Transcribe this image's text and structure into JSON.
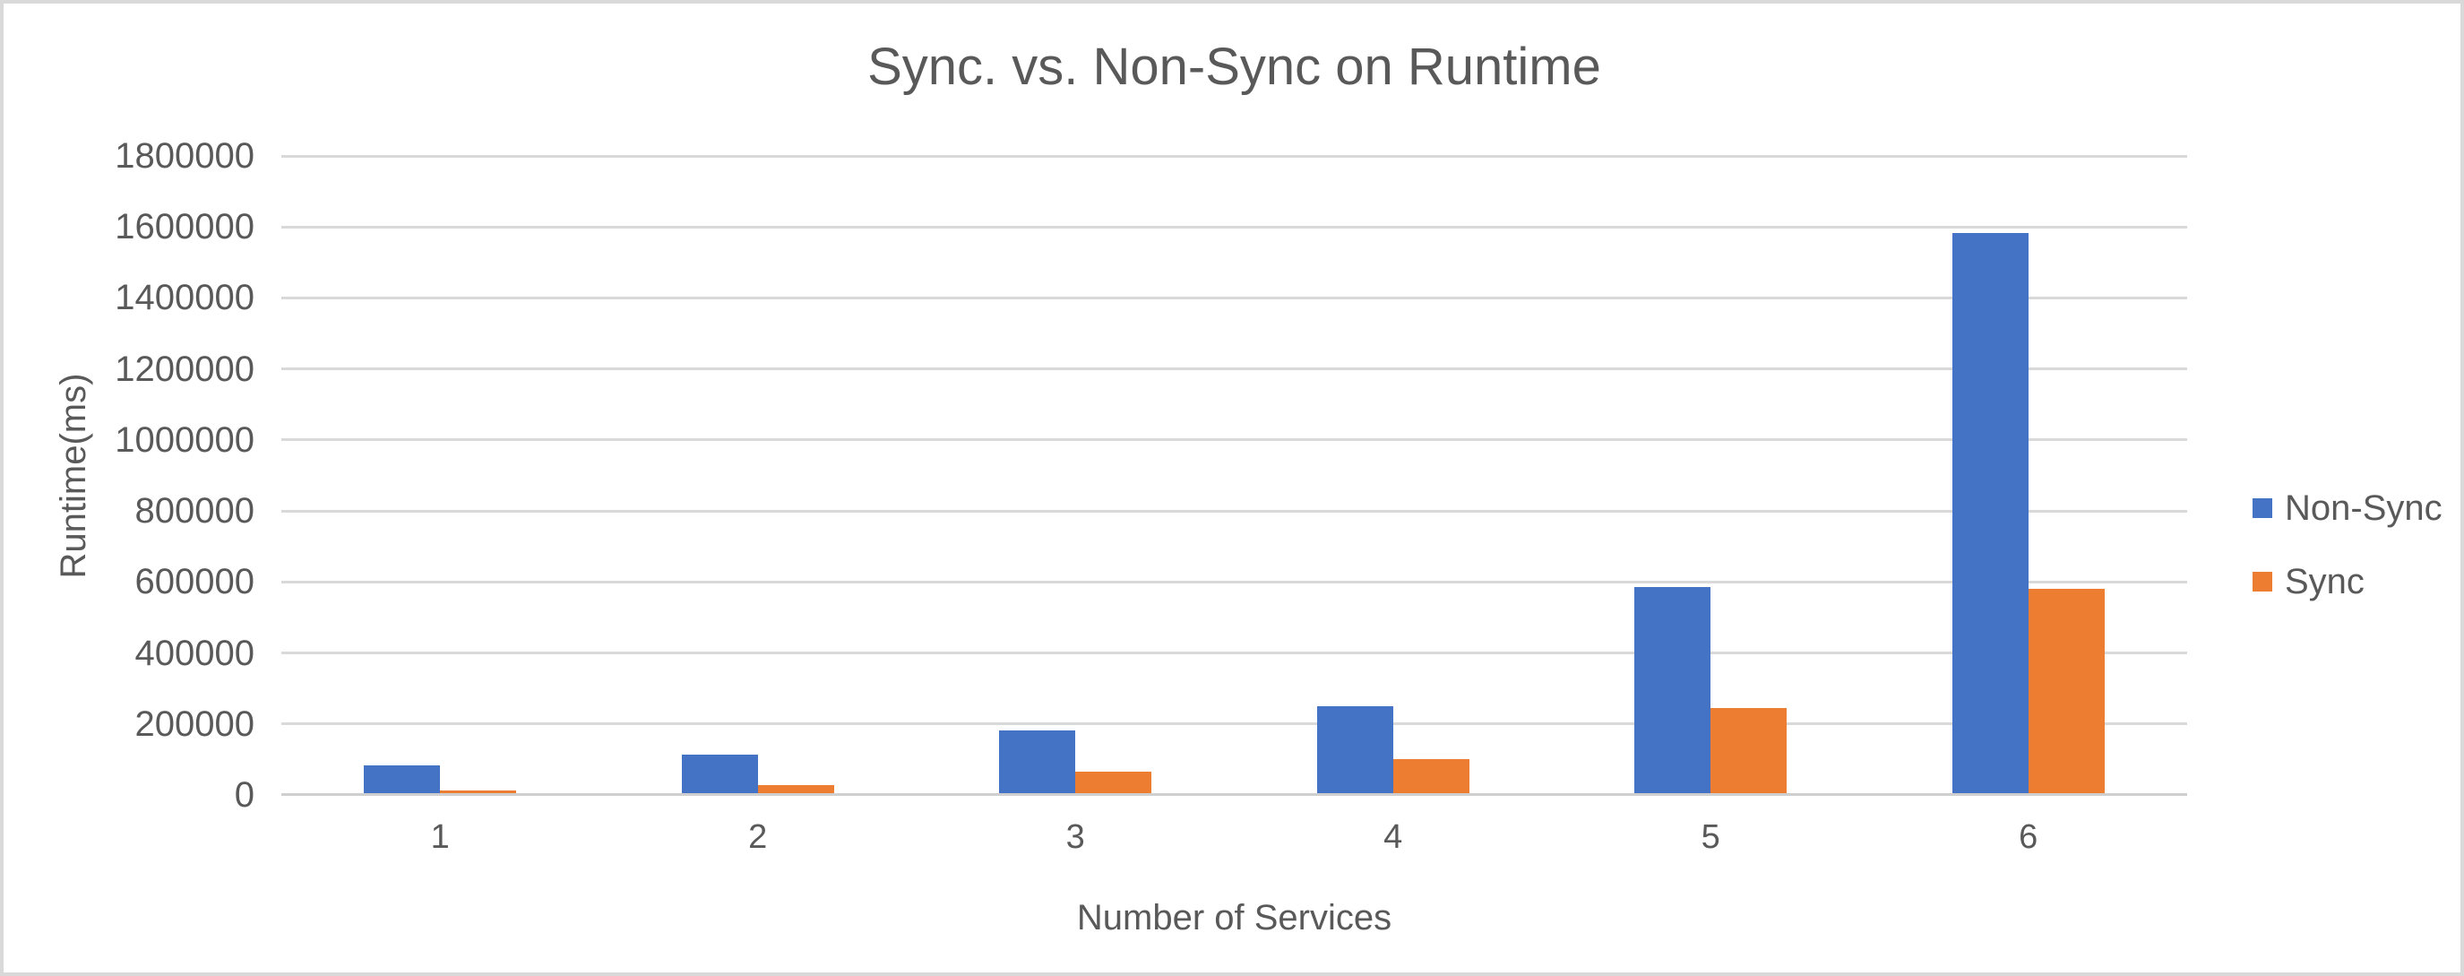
{
  "frame": {
    "background": "#ffffff",
    "border_color": "#d9d9d9"
  },
  "chart_data": {
    "type": "bar",
    "title": "Sync. vs. Non-Sync on Runtime",
    "xlabel": "Number of Services",
    "ylabel": "Runtime(ms)",
    "categories": [
      "1",
      "2",
      "3",
      "4",
      "5",
      "6"
    ],
    "series": [
      {
        "name": "Non-Sync",
        "color": "#4472C4",
        "values": [
          84000,
          113000,
          183000,
          250000,
          586000,
          1582000
        ]
      },
      {
        "name": "Sync",
        "color": "#ED7D31",
        "values": [
          13000,
          28000,
          66000,
          100000,
          244000,
          580000
        ]
      }
    ],
    "ylim": [
      0,
      1800000
    ],
    "ytick_step": 200000,
    "ytick_labels": [
      "0",
      "200000",
      "400000",
      "600000",
      "800000",
      "1000000",
      "1200000",
      "1400000",
      "1600000",
      "1800000"
    ],
    "grid": true,
    "legend_position": "right",
    "colors": {
      "text": "#595959",
      "gridline": "#d9d9d9",
      "axis_line": "#cfcfcf"
    }
  }
}
